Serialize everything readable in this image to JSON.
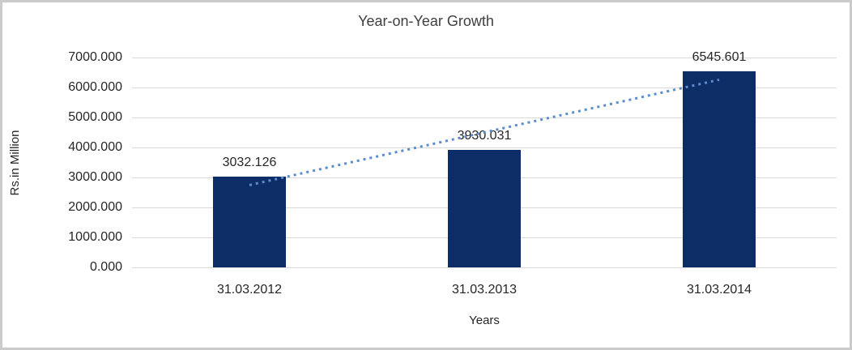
{
  "chart_data": {
    "type": "bar",
    "title": "Year-on-Year Growth",
    "xlabel": "Years",
    "ylabel": "Rs.in Million",
    "categories": [
      "31.03.2012",
      "31.03.2013",
      "31.03.2014"
    ],
    "values": [
      3032.126,
      3930.031,
      6545.601
    ],
    "data_labels": [
      "3032.126",
      "3930.031",
      "6545.601"
    ],
    "ylim": [
      0,
      7000
    ],
    "ytick_step": 1000,
    "ytick_labels": [
      "0.000",
      "1000.000",
      "2000.000",
      "3000.000",
      "4000.000",
      "5000.000",
      "6000.000",
      "7000.000"
    ],
    "grid": "horizontal-only",
    "legend": "none",
    "colors": {
      "bar": "#0d2d66",
      "trendline": "#5b8cce",
      "gridline": "#d9d9d9",
      "border": "#cbcbcb",
      "text": "#262626",
      "title_text": "#3f3f3f"
    },
    "trendline": {
      "type": "linear",
      "style": "dotted"
    }
  }
}
